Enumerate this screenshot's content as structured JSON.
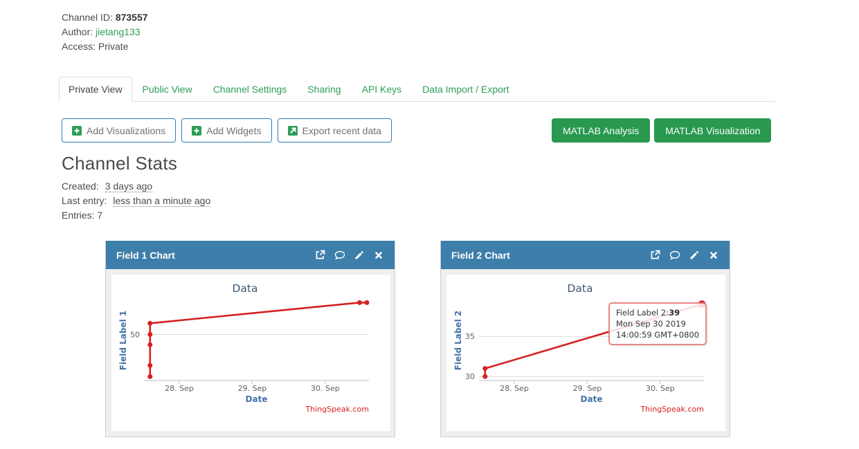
{
  "colors": {
    "header_blue": "#3d7eab",
    "link_green": "#2e9e57",
    "button_green": "#28994f",
    "button_border_blue": "#2d7cb8",
    "series_red": "#d62020",
    "axis_title_blue": "#4572a7",
    "chart_title": "#3e576f",
    "tick_text": "#606060",
    "gridline": "#d8d8d8",
    "axis_line": "#c0c0c0",
    "credit_red": "#d62020"
  },
  "channel_info": {
    "id_label": "Channel ID:",
    "id_value": "873557",
    "author_label": "Author:",
    "author_value": "jietang133",
    "access_label": "Access:",
    "access_value": "Private"
  },
  "tabs": [
    {
      "label": "Private View",
      "active": true
    },
    {
      "label": "Public View",
      "active": false
    },
    {
      "label": "Channel Settings",
      "active": false
    },
    {
      "label": "Sharing",
      "active": false
    },
    {
      "label": "API Keys",
      "active": false
    },
    {
      "label": "Data Import / Export",
      "active": false
    }
  ],
  "toolbar": {
    "add_visualizations": "Add Visualizations",
    "add_widgets": "Add Widgets",
    "export_recent_data": "Export recent data",
    "matlab_analysis": "MATLAB Analysis",
    "matlab_visualization": "MATLAB Visualization"
  },
  "stats": {
    "heading": "Channel Stats",
    "created_label": "Created:",
    "created_value": "3 days ago",
    "last_entry_label": "Last entry:",
    "last_entry_value": "less than a minute ago",
    "entries_label": "Entries:",
    "entries_value": "7"
  },
  "cards": [
    {
      "title": "Field 1 Chart"
    },
    {
      "title": "Field 2 Chart"
    }
  ],
  "card_icons": [
    "external-link-icon",
    "comment-icon",
    "edit-pencil-icon",
    "close-icon"
  ],
  "chart_data": [
    {
      "type": "line",
      "title": "Data",
      "xlabel": "Date",
      "ylabel": "Field Label 1",
      "credit": "ThingSpeak.com",
      "x_unit": "days, 0 = 28 Sep 2019",
      "xlim": [
        -0.483,
        2.598
      ],
      "ylim": [
        44.2,
        54.3
      ],
      "grid": true,
      "xticks": [
        {
          "pos": 0,
          "label": "28. Sep"
        },
        {
          "pos": 1,
          "label": "29. Sep"
        },
        {
          "pos": 2,
          "label": "30. Sep"
        }
      ],
      "yticks": [
        {
          "pos": 50,
          "label": "50"
        }
      ],
      "points": [
        {
          "x": -0.4,
          "y": 44.7
        },
        {
          "x": -0.4,
          "y": 46.1
        },
        {
          "x": -0.4,
          "y": 48.7
        },
        {
          "x": -0.4,
          "y": 50
        },
        {
          "x": -0.4,
          "y": 51.4
        },
        {
          "x": 2.47,
          "y": 54
        },
        {
          "x": 2.57,
          "y": 54
        }
      ]
    },
    {
      "type": "line",
      "title": "Data",
      "xlabel": "Date",
      "ylabel": "Field Label 2",
      "credit": "ThingSpeak.com",
      "x_unit": "days, 0 = 28 Sep 2019",
      "xlim": [
        -0.483,
        2.598
      ],
      "ylim": [
        29.5,
        39.5
      ],
      "grid": true,
      "xticks": [
        {
          "pos": 0,
          "label": "28. Sep"
        },
        {
          "pos": 1,
          "label": "29. Sep"
        },
        {
          "pos": 2,
          "label": "30. Sep"
        }
      ],
      "yticks": [
        {
          "pos": 30,
          "label": "30"
        },
        {
          "pos": 35,
          "label": "35"
        }
      ],
      "points": [
        {
          "x": -0.4,
          "y": 30
        },
        {
          "x": -0.4,
          "y": 31
        },
        {
          "x": 2.57,
          "y": 39,
          "hovered": true
        }
      ],
      "tooltip": {
        "label": "Field Label 2:",
        "value": "39",
        "date_line": "Mon Sep 30 2019",
        "time_line": "14:00:59 GMT+0800"
      }
    }
  ]
}
